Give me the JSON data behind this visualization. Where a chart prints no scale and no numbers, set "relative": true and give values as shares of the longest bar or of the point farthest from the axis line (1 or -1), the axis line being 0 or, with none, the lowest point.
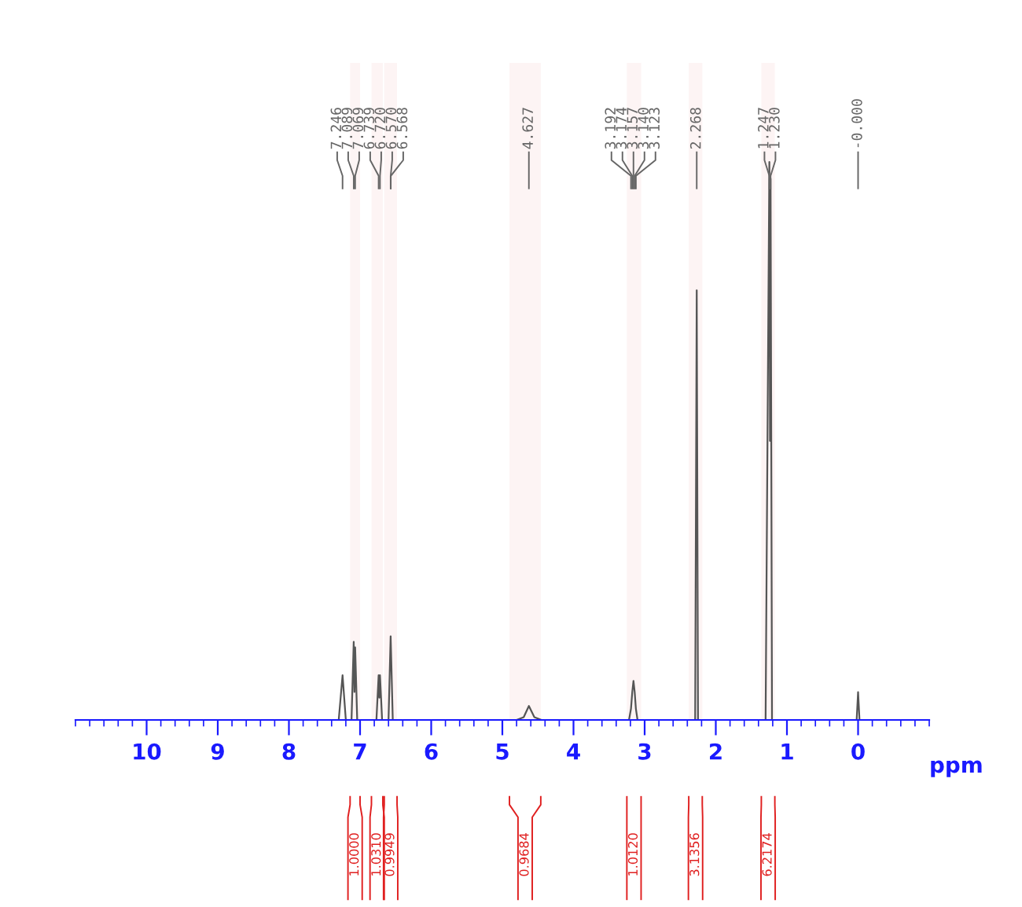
{
  "chart_data": {
    "type": "line",
    "relative": true,
    "xlabel": "ppm",
    "xlim": [
      11.0,
      -1.0
    ],
    "xticks": [
      10,
      9,
      8,
      7,
      6,
      5,
      4,
      3,
      2,
      1,
      0
    ],
    "grid": false,
    "legend": false,
    "marker": "none",
    "line_style": "solid",
    "x": [
      11.0,
      7.3,
      7.246,
      7.2,
      7.12,
      7.089,
      7.079,
      7.069,
      7.04,
      6.77,
      6.739,
      6.729,
      6.72,
      6.69,
      6.6,
      6.57,
      6.54,
      4.8,
      4.7,
      4.627,
      4.55,
      4.45,
      3.22,
      3.192,
      3.174,
      3.157,
      3.14,
      3.123,
      3.1,
      2.29,
      2.268,
      2.25,
      1.3,
      1.247,
      1.238,
      1.23,
      1.21,
      0.02,
      0.0,
      -0.02,
      -1.0
    ],
    "series": [
      {
        "color": "#555555",
        "values": [
          0,
          0,
          0.08,
          0,
          0,
          0.14,
          0.05,
          0.13,
          0,
          0,
          0.08,
          0.04,
          0.08,
          0,
          0,
          0.15,
          0,
          0,
          0.005,
          0.025,
          0.005,
          0,
          0,
          0.02,
          0.05,
          0.07,
          0.05,
          0.02,
          0,
          0,
          0.77,
          0,
          0,
          1.0,
          0.5,
          0.97,
          0,
          0,
          0.05,
          0,
          0
        ]
      }
    ],
    "annotations": [
      {
        "text": "7.246",
        "x": 7.246
      },
      {
        "text": "7.089",
        "x": 7.089
      },
      {
        "text": "7.069",
        "x": 7.069
      },
      {
        "text": "6.739",
        "x": 6.739
      },
      {
        "text": "6.720",
        "x": 6.72
      },
      {
        "text": "6.570",
        "x": 6.57
      },
      {
        "text": "6.568",
        "x": 6.568
      },
      {
        "text": "4.627",
        "x": 4.627
      },
      {
        "text": "3.192",
        "x": 3.192
      },
      {
        "text": "3.174",
        "x": 3.174
      },
      {
        "text": "3.157",
        "x": 3.157
      },
      {
        "text": "3.140",
        "x": 3.14
      },
      {
        "text": "3.123",
        "x": 3.123
      },
      {
        "text": "2.268",
        "x": 2.268
      },
      {
        "text": "1.247",
        "x": 1.247
      },
      {
        "text": "1.230",
        "x": 1.23
      },
      {
        "text": "-0.000",
        "x": 0.0
      }
    ],
    "bands": [
      {
        "axis": "x",
        "from": 7.14,
        "to": 7.0,
        "label": "1.0000",
        "color": "#e02020"
      },
      {
        "axis": "x",
        "from": 6.84,
        "to": 6.68,
        "label": "1.0310",
        "color": "#e02020"
      },
      {
        "axis": "x",
        "from": 6.66,
        "to": 6.48,
        "label": "0.9949",
        "color": "#e02020"
      },
      {
        "axis": "x",
        "from": 4.9,
        "to": 4.46,
        "label": "0.9684",
        "color": "#e02020"
      },
      {
        "axis": "x",
        "from": 3.25,
        "to": 3.05,
        "label": "1.0120",
        "color": "#e02020"
      },
      {
        "axis": "x",
        "from": 2.38,
        "to": 2.19,
        "label": "3.1356",
        "color": "#e02020"
      },
      {
        "axis": "x",
        "from": 1.36,
        "to": 1.17,
        "label": "6.2174",
        "color": "#e02020"
      }
    ]
  }
}
